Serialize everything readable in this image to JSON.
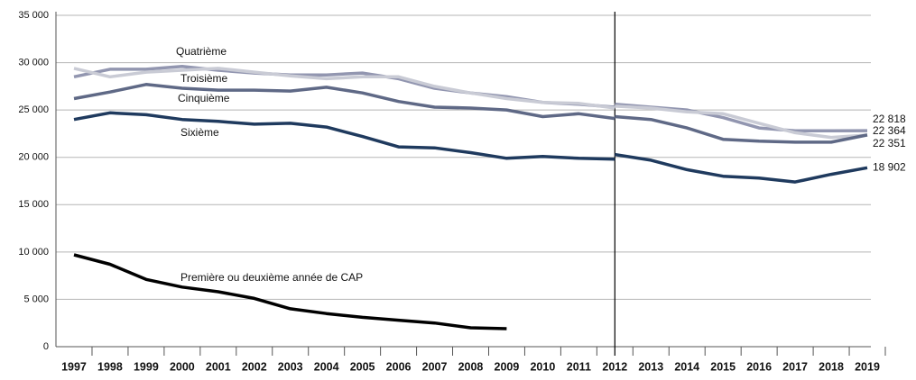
{
  "chart_data": {
    "type": "line",
    "x": [
      1997,
      1998,
      1999,
      2000,
      2001,
      2002,
      2003,
      2004,
      2005,
      2006,
      2007,
      2008,
      2009,
      2010,
      2011,
      2012,
      2013,
      2014,
      2015,
      2016,
      2017,
      2018,
      2019
    ],
    "xlim": [
      1996.5,
      2019.1
    ],
    "ylim": [
      0,
      35000
    ],
    "yticks": [
      0,
      {
        "value": 5000,
        "label": "5 000"
      },
      {
        "value": 10000,
        "label": "10 000"
      },
      {
        "value": 15000,
        "label": "15 000"
      },
      {
        "value": 20000,
        "label": "20 000"
      },
      {
        "value": 25000,
        "label": "25 000"
      },
      {
        "value": 30000,
        "label": "30 000"
      },
      {
        "value": 35000,
        "label": "35 000"
      }
    ],
    "grid": true,
    "vline": 2012,
    "series": [
      {
        "name": "Quatrième",
        "color": "#9296b0",
        "values": [
          28500,
          29300,
          29300,
          29600,
          29200,
          28900,
          28700,
          28700,
          28900,
          28300,
          27300,
          26800,
          26400,
          25800,
          25600,
          25300,
          null,
          null,
          null,
          null,
          null,
          null,
          null
        ]
      },
      {
        "name": "Troisième",
        "color": "#c9cbd5",
        "values": [
          29400,
          28500,
          29000,
          29200,
          29400,
          29000,
          28600,
          28300,
          28500,
          28500,
          27500,
          26800,
          26200,
          25800,
          25700,
          25200,
          null,
          null,
          null,
          null,
          null,
          null,
          null
        ]
      },
      {
        "name": "Cinquième",
        "color": "#5f6986",
        "values": [
          26200,
          26900,
          27700,
          27300,
          27100,
          27100,
          27000,
          27400,
          26800,
          25900,
          25300,
          25200,
          25000,
          24300,
          24600,
          24100,
          null,
          null,
          null,
          null,
          null,
          null,
          null
        ]
      },
      {
        "name": "Sixième",
        "color": "#1f3a5e",
        "values": [
          24000,
          24700,
          24500,
          24000,
          23800,
          23500,
          23600,
          23200,
          22200,
          21100,
          21000,
          20500,
          19900,
          20100,
          19900,
          19800,
          null,
          null,
          null,
          null,
          null,
          null,
          null
        ]
      },
      {
        "name": "Première ou deuxième année de CAP",
        "color": "#000000",
        "values": [
          9700,
          8700,
          7100,
          6300,
          5800,
          5100,
          4000,
          3500,
          3100,
          2800,
          2500,
          2000,
          1900,
          null,
          null,
          null,
          null,
          null,
          null,
          null,
          null,
          null,
          null
        ]
      },
      {
        "color": "#9296b0",
        "values": [
          null,
          null,
          null,
          null,
          null,
          null,
          null,
          null,
          null,
          null,
          null,
          null,
          null,
          null,
          null,
          25600,
          25300,
          25000,
          24200,
          23100,
          22800,
          22800,
          22818
        ],
        "value_labels": [
          null,
          null,
          null,
          null,
          null,
          null,
          null,
          null,
          null,
          null,
          null,
          null,
          null,
          null,
          null,
          null,
          null,
          null,
          null,
          null,
          null,
          null,
          "22 818"
        ]
      },
      {
        "color": "#c9cbd5",
        "values": [
          null,
          null,
          null,
          null,
          null,
          null,
          null,
          null,
          null,
          null,
          null,
          null,
          null,
          null,
          null,
          25400,
          25200,
          24800,
          24600,
          23600,
          22600,
          22100,
          22351
        ],
        "value_labels": [
          null,
          null,
          null,
          null,
          null,
          null,
          null,
          null,
          null,
          null,
          null,
          null,
          null,
          null,
          null,
          null,
          null,
          null,
          null,
          null,
          null,
          null,
          "22 351"
        ]
      },
      {
        "color": "#5f6986",
        "values": [
          null,
          null,
          null,
          null,
          null,
          null,
          null,
          null,
          null,
          null,
          null,
          null,
          null,
          null,
          null,
          24300,
          24000,
          23100,
          21900,
          21700,
          21600,
          21600,
          22364
        ],
        "value_labels": [
          null,
          null,
          null,
          null,
          null,
          null,
          null,
          null,
          null,
          null,
          null,
          null,
          null,
          null,
          null,
          null,
          null,
          null,
          null,
          null,
          null,
          null,
          "22 364"
        ]
      },
      {
        "color": "#1f3a5e",
        "values": [
          null,
          null,
          null,
          null,
          null,
          null,
          null,
          null,
          null,
          null,
          null,
          null,
          null,
          null,
          null,
          20300,
          19700,
          18700,
          18000,
          17800,
          17400,
          18200,
          18902
        ],
        "value_labels": [
          null,
          null,
          null,
          null,
          null,
          null,
          null,
          null,
          null,
          null,
          null,
          null,
          null,
          null,
          null,
          null,
          null,
          null,
          null,
          null,
          null,
          null,
          "18 902"
        ]
      }
    ]
  }
}
